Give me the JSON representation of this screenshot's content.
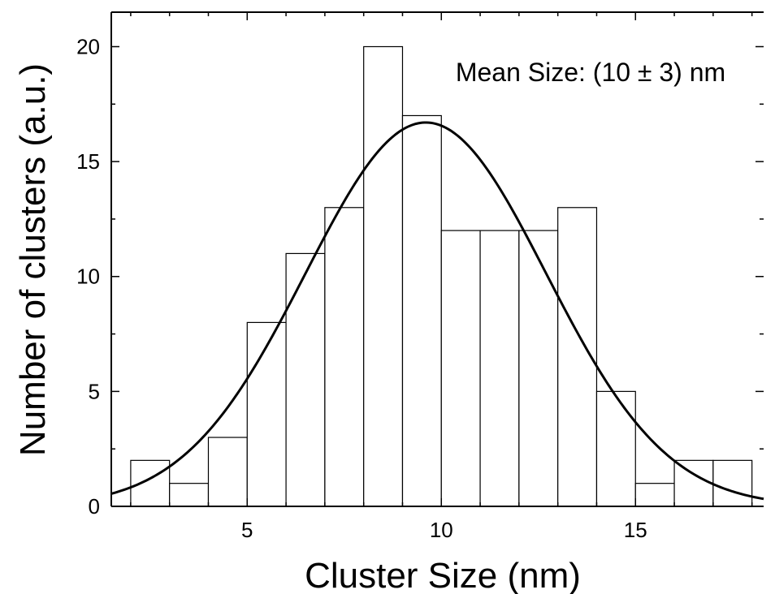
{
  "chart_data": {
    "type": "bar",
    "subtype": "histogram",
    "xlabel": "Cluster Size (nm)",
    "ylabel": "Number of clusters (a.u.)",
    "annotation": "Mean Size: (10 ± 3) nm",
    "xlim": [
      1.5,
      18.3
    ],
    "ylim": [
      0,
      21.5
    ],
    "xticks": [
      5,
      10,
      15
    ],
    "yticks": [
      0,
      5,
      10,
      15,
      20
    ],
    "bins": [
      {
        "x0": 2,
        "x1": 3,
        "value": 2
      },
      {
        "x0": 3,
        "x1": 4,
        "value": 1
      },
      {
        "x0": 4,
        "x1": 5,
        "value": 3
      },
      {
        "x0": 5,
        "x1": 6,
        "value": 8
      },
      {
        "x0": 6,
        "x1": 7,
        "value": 11
      },
      {
        "x0": 7,
        "x1": 8,
        "value": 13
      },
      {
        "x0": 8,
        "x1": 9,
        "value": 20
      },
      {
        "x0": 9,
        "x1": 10,
        "value": 17
      },
      {
        "x0": 10,
        "x1": 11,
        "value": 12
      },
      {
        "x0": 11,
        "x1": 12,
        "value": 12
      },
      {
        "x0": 12,
        "x1": 13,
        "value": 12
      },
      {
        "x0": 13,
        "x1": 14,
        "value": 13
      },
      {
        "x0": 14,
        "x1": 15,
        "value": 5
      },
      {
        "x0": 15,
        "x1": 16,
        "value": 1
      },
      {
        "x0": 16,
        "x1": 17,
        "value": 2
      },
      {
        "x0": 17,
        "x1": 18,
        "value": 2
      }
    ],
    "fit": {
      "type": "gaussian",
      "mean": 9.6,
      "sigma": 3.1,
      "amplitude": 16.7
    },
    "grid": false,
    "legend": "none"
  }
}
